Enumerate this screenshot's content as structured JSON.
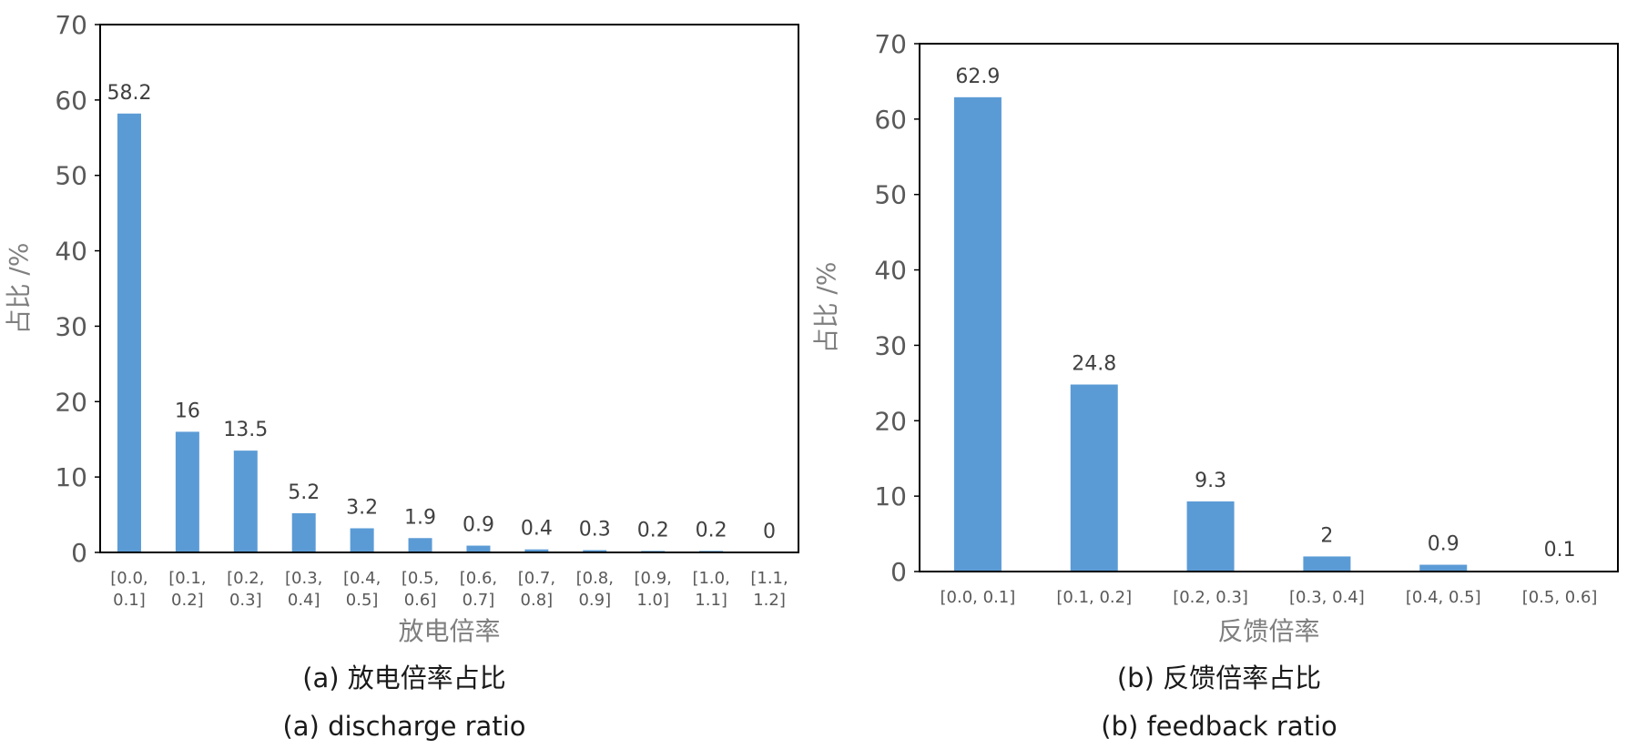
{
  "chart_data": [
    {
      "type": "bar",
      "categories": [
        [
          "[0.0,",
          "0.1]"
        ],
        [
          "[0.1,",
          "0.2]"
        ],
        [
          "[0.2,",
          "0.3]"
        ],
        [
          "[0.3,",
          "0.4]"
        ],
        [
          "[0.4,",
          "0.5]"
        ],
        [
          "[0.5,",
          "0.6]"
        ],
        [
          "[0.6,",
          "0.7]"
        ],
        [
          "[0.7,",
          "0.8]"
        ],
        [
          "[0.8,",
          "0.9]"
        ],
        [
          "[0.9,",
          "1.0]"
        ],
        [
          "[1.0,",
          "1.1]"
        ],
        [
          "[1.1,",
          "1.2]"
        ]
      ],
      "values": [
        58.2,
        16,
        13.5,
        5.2,
        3.2,
        1.9,
        0.9,
        0.4,
        0.3,
        0.2,
        0.2,
        0
      ],
      "data_labels": [
        "58.2",
        "16",
        "13.5",
        "5.2",
        "3.2",
        "1.9",
        "0.9",
        "0.4",
        "0.3",
        "0.2",
        "0.2",
        "0"
      ],
      "xlabel": "放电倍率",
      "ylabel": "占比 /%",
      "ylim": [
        0,
        70
      ],
      "yticks": [
        0,
        10,
        20,
        30,
        40,
        50,
        60,
        70
      ],
      "grid": false,
      "bar_color": "#5b9bd5",
      "caption_cn": "(a) 放电倍率占比",
      "caption_en": "(a) discharge ratio"
    },
    {
      "type": "bar",
      "categories": [
        [
          "[0.0, 0.1]"
        ],
        [
          "[0.1, 0.2]"
        ],
        [
          "[0.2, 0.3]"
        ],
        [
          "[0.3, 0.4]"
        ],
        [
          "[0.4, 0.5]"
        ],
        [
          "[0.5, 0.6]"
        ]
      ],
      "values": [
        62.9,
        24.8,
        9.3,
        2,
        0.9,
        0.1
      ],
      "data_labels": [
        "62.9",
        "24.8",
        "9.3",
        "2",
        "0.9",
        "0.1"
      ],
      "xlabel": "反馈倍率",
      "ylabel": "占比 /%",
      "ylim": [
        0,
        70
      ],
      "yticks": [
        0,
        10,
        20,
        30,
        40,
        50,
        60,
        70
      ],
      "grid": false,
      "bar_color": "#5b9bd5",
      "caption_cn": "(b) 反馈倍率占比",
      "caption_en": "(b) feedback ratio"
    }
  ]
}
